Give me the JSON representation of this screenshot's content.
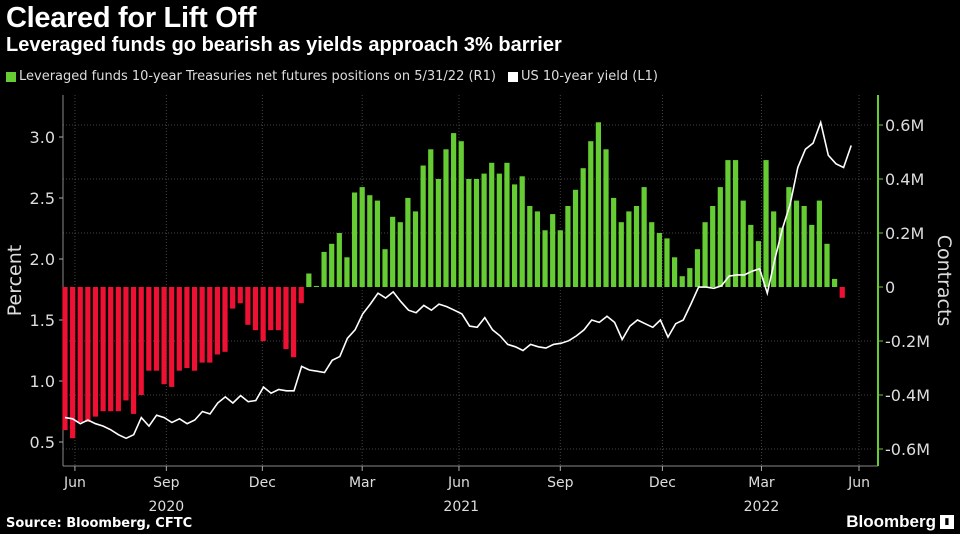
{
  "header": {
    "title": "Cleared for Lift Off",
    "subtitle": "Leveraged funds go bearish as yields approach 3% barrier"
  },
  "footer": {
    "source": "Source: Bloomberg, CFTC",
    "logo": "Bloomberg"
  },
  "colors": {
    "positive": "#66cc33",
    "negative": "#ee1133",
    "line": "#ffffff",
    "axis_right": "#66cc33"
  },
  "chart_data": {
    "type": "bar+line",
    "title": "Cleared for Lift Off",
    "legend": [
      {
        "name": "Leveraged funds 10-year Treasuries net futures positions on 5/31/22 (R1)",
        "color": "#66cc33"
      },
      {
        "name": "US 10-year yield (L1)",
        "color": "#ffffff"
      }
    ],
    "legend_position": "top-left",
    "ylabel_left": "Percent",
    "ylabel_right": "Contracts",
    "ylim_left": [
      0.35,
      3.35
    ],
    "ylim_right": [
      -0.65,
      0.72
    ],
    "yticks_left": [
      {
        "v": 0.5,
        "label": "0.5"
      },
      {
        "v": 1.0,
        "label": "1.0"
      },
      {
        "v": 1.5,
        "label": "1.5"
      },
      {
        "v": 2.0,
        "label": "2.0"
      },
      {
        "v": 2.5,
        "label": "2.5"
      },
      {
        "v": 3.0,
        "label": "3.0"
      }
    ],
    "yticks_right": [
      {
        "v": -0.6,
        "label": "-0.6M"
      },
      {
        "v": -0.4,
        "label": "-0.4M"
      },
      {
        "v": -0.2,
        "label": "-0.2M"
      },
      {
        "v": 0,
        "label": "0"
      },
      {
        "v": 0.2,
        "label": "0.2M"
      },
      {
        "v": 0.4,
        "label": "0.4M"
      },
      {
        "v": 0.6,
        "label": "0.6M"
      }
    ],
    "xticks": [
      {
        "i": 1.3,
        "label": "Jun"
      },
      {
        "i": 13.3,
        "label": "Sep"
      },
      {
        "i": 25.9,
        "label": "Dec"
      },
      {
        "i": 39,
        "label": "Mar"
      },
      {
        "i": 51.7,
        "label": "Jun"
      },
      {
        "i": 65,
        "label": "Sep"
      },
      {
        "i": 78.4,
        "label": "Dec"
      },
      {
        "i": 91.4,
        "label": "Mar"
      },
      {
        "i": 104.2,
        "label": "Jun"
      }
    ],
    "years": [
      {
        "i": 13.3,
        "label": "2020"
      },
      {
        "i": 52,
        "label": "2021"
      },
      {
        "i": 91.4,
        "label": "2022"
      }
    ],
    "grid": true,
    "positions_millions": [
      -0.53,
      -0.56,
      -0.5,
      -0.5,
      -0.48,
      -0.46,
      -0.46,
      -0.46,
      -0.42,
      -0.47,
      -0.4,
      -0.31,
      -0.31,
      -0.36,
      -0.37,
      -0.31,
      -0.3,
      -0.31,
      -0.28,
      -0.28,
      -0.25,
      -0.24,
      -0.08,
      -0.06,
      -0.14,
      -0.16,
      -0.2,
      -0.16,
      -0.16,
      -0.23,
      -0.26,
      -0.06,
      0.05,
      0.004,
      0.13,
      0.16,
      0.2,
      0.11,
      0.35,
      0.37,
      0.34,
      0.32,
      0.14,
      0.26,
      0.24,
      0.33,
      0.28,
      0.45,
      0.51,
      0.4,
      0.51,
      0.57,
      0.54,
      0.4,
      0.4,
      0.42,
      0.46,
      0.42,
      0.46,
      0.38,
      0.41,
      0.3,
      0.28,
      0.21,
      0.27,
      0.21,
      0.3,
      0.36,
      0.44,
      0.54,
      0.61,
      0.51,
      0.33,
      0.24,
      0.28,
      0.3,
      0.37,
      0.24,
      0.2,
      0.18,
      0.11,
      0.04,
      0.07,
      0.14,
      0.24,
      0.3,
      0.37,
      0.47,
      0.47,
      0.32,
      0.23,
      0.17,
      0.47,
      0.28,
      0.22,
      0.37,
      0.32,
      0.3,
      0.23,
      0.32,
      0.16,
      0.03,
      -0.04
    ],
    "yield_percent": [
      0.7,
      0.69,
      0.65,
      0.68,
      0.65,
      0.63,
      0.6,
      0.56,
      0.53,
      0.56,
      0.7,
      0.63,
      0.72,
      0.7,
      0.66,
      0.69,
      0.65,
      0.68,
      0.75,
      0.73,
      0.82,
      0.87,
      0.82,
      0.88,
      0.83,
      0.84,
      0.95,
      0.9,
      0.93,
      0.92,
      0.92,
      1.12,
      1.09,
      1.08,
      1.07,
      1.17,
      1.2,
      1.35,
      1.42,
      1.55,
      1.63,
      1.72,
      1.68,
      1.73,
      1.65,
      1.58,
      1.56,
      1.62,
      1.58,
      1.63,
      1.61,
      1.58,
      1.55,
      1.45,
      1.44,
      1.52,
      1.42,
      1.37,
      1.3,
      1.28,
      1.25,
      1.3,
      1.28,
      1.27,
      1.3,
      1.31,
      1.33,
      1.37,
      1.42,
      1.5,
      1.48,
      1.53,
      1.48,
      1.34,
      1.45,
      1.5,
      1.47,
      1.44,
      1.5,
      1.36,
      1.47,
      1.5,
      1.63,
      1.77,
      1.77,
      1.76,
      1.78,
      1.86,
      1.87,
      1.87,
      1.9,
      1.92,
      1.72,
      2.0,
      2.25,
      2.45,
      2.75,
      2.9,
      2.95,
      3.12,
      2.85,
      2.78,
      2.75,
      2.93
    ]
  }
}
